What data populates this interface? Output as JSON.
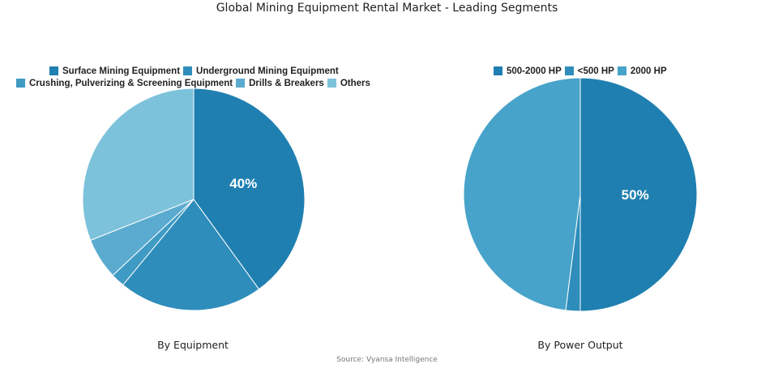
{
  "title": "Global Mining Equipment Rental Market - Leading Segments",
  "source": "Source: Vyansa Intelligence",
  "chart_data": [
    {
      "type": "pie",
      "subtitle": "By Equipment",
      "categories": [
        "Surface Mining Equipment",
        "Underground Mining Equipment",
        "Crushing, Pulverizing & Screening Equipment",
        "Drills & Breakers",
        "Others"
      ],
      "values": [
        40,
        21,
        2,
        6,
        31
      ],
      "colors": [
        "#1f7fb0",
        "#2e8dbb",
        "#3f9ac4",
        "#5aabcf",
        "#7cc2db"
      ],
      "labels_shown": [
        "40%",
        "",
        "",
        "",
        ""
      ]
    },
    {
      "type": "pie",
      "subtitle": "By Power Output",
      "categories": [
        "500-2000 HP",
        "<500 HP",
        "2000 HP"
      ],
      "values": [
        50,
        2,
        48
      ],
      "colors": [
        "#1f7fb0",
        "#2e8dbb",
        "#47a3c9"
      ],
      "labels_shown": [
        "50%",
        "",
        ""
      ]
    }
  ]
}
